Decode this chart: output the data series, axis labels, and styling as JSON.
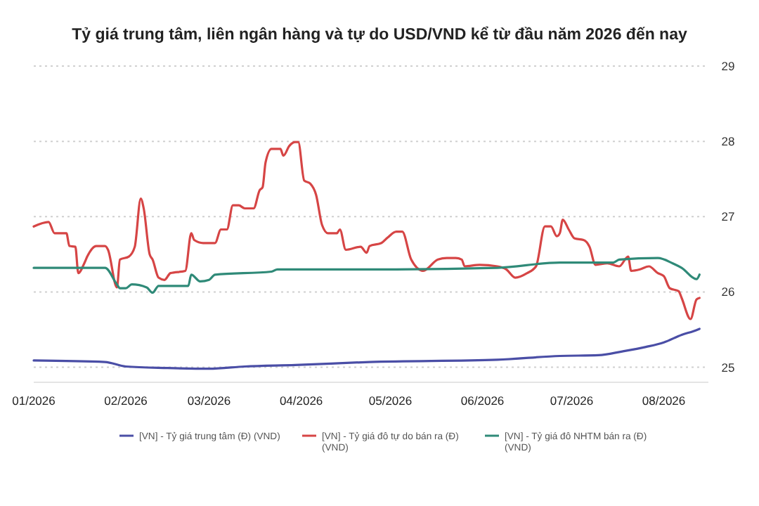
{
  "chart_data": {
    "type": "line",
    "title": "Tỷ giá trung tâm, liên ngân hàng và tự do USD/VND kể từ đầu năm 2026 đến nay",
    "xlim": [
      "2026-01-01",
      "2026-08-16"
    ],
    "xticks": [
      {
        "value": "2026-01-01",
        "label": "01/2026"
      },
      {
        "value": "2026-02-01",
        "label": "02/2026"
      },
      {
        "value": "2026-03-01",
        "label": "03/2026"
      },
      {
        "value": "2026-04-01",
        "label": "04/2026"
      },
      {
        "value": "2026-05-01",
        "label": "05/2026"
      },
      {
        "value": "2026-06-01",
        "label": "06/2026"
      },
      {
        "value": "2026-07-01",
        "label": "07/2026"
      },
      {
        "value": "2026-08-01",
        "label": "08/2026"
      }
    ],
    "ylim": [
      24.8,
      29
    ],
    "yticks": [
      25,
      26,
      27,
      28,
      29
    ],
    "grid": "y",
    "legend": "bottom",
    "marker": "none",
    "line_style": "solid",
    "series": [
      {
        "name": "[VN] - Tỷ giá trung tâm (Đ) (VND)",
        "color": "#4a4ea6",
        "x": [
          "2026-01-01",
          "2026-01-25",
          "2026-02-01",
          "2026-02-15",
          "2026-03-01",
          "2026-03-13",
          "2026-03-30",
          "2026-04-24",
          "2026-06-06",
          "2026-06-27",
          "2026-07-10",
          "2026-07-18",
          "2026-07-26",
          "2026-08-01",
          "2026-08-07",
          "2026-08-11",
          "2026-08-13"
        ],
        "values": [
          25.09,
          25.07,
          25.01,
          24.99,
          24.98,
          25.01,
          25.03,
          25.07,
          25.1,
          25.15,
          25.16,
          25.21,
          25.27,
          25.33,
          25.43,
          25.48,
          25.51
        ]
      },
      {
        "name": "[VN] - Tỷ giá đô tự do bán ra (Đ) (VND)",
        "color": "#d64545",
        "x": [
          "2026-01-01",
          "2026-01-06",
          "2026-01-08",
          "2026-01-12",
          "2026-01-13",
          "2026-01-15",
          "2026-01-16",
          "2026-01-18",
          "2026-01-19",
          "2026-01-22",
          "2026-01-25",
          "2026-01-26",
          "2026-01-29",
          "2026-01-30",
          "2026-02-02",
          "2026-02-04",
          "2026-02-06",
          "2026-02-07",
          "2026-02-09",
          "2026-02-10",
          "2026-02-12",
          "2026-02-14",
          "2026-02-16",
          "2026-02-21",
          "2026-02-23",
          "2026-02-24",
          "2026-02-27",
          "2026-03-03",
          "2026-03-05",
          "2026-03-07",
          "2026-03-09",
          "2026-03-11",
          "2026-03-13",
          "2026-03-16",
          "2026-03-18",
          "2026-03-19",
          "2026-03-20",
          "2026-03-22",
          "2026-03-25",
          "2026-03-26",
          "2026-03-28",
          "2026-03-30",
          "2026-03-31",
          "2026-04-02",
          "2026-04-04",
          "2026-04-06",
          "2026-04-08",
          "2026-04-10",
          "2026-04-13",
          "2026-04-14",
          "2026-04-16",
          "2026-04-21",
          "2026-04-23",
          "2026-04-24",
          "2026-04-28",
          "2026-04-30",
          "2026-05-03",
          "2026-05-05",
          "2026-05-08",
          "2026-05-12",
          "2026-05-17",
          "2026-05-20",
          "2026-05-23",
          "2026-05-25",
          "2026-05-26",
          "2026-05-31",
          "2026-06-06",
          "2026-06-09",
          "2026-06-12",
          "2026-06-16",
          "2026-06-19",
          "2026-06-22",
          "2026-06-24",
          "2026-06-26",
          "2026-06-27",
          "2026-06-28",
          "2026-06-30",
          "2026-07-02",
          "2026-07-05",
          "2026-07-07",
          "2026-07-09",
          "2026-07-13",
          "2026-07-17",
          "2026-07-20",
          "2026-07-21",
          "2026-07-24",
          "2026-07-27",
          "2026-07-30",
          "2026-08-01",
          "2026-08-03",
          "2026-08-06",
          "2026-08-07",
          "2026-08-10",
          "2026-08-12",
          "2026-08-13"
        ],
        "values": [
          26.87,
          26.93,
          26.78,
          26.78,
          26.61,
          26.6,
          26.25,
          26.38,
          26.47,
          26.61,
          26.61,
          26.56,
          26.06,
          26.43,
          26.47,
          26.6,
          27.24,
          27.11,
          26.5,
          26.43,
          26.19,
          26.16,
          26.25,
          26.28,
          26.78,
          26.69,
          26.65,
          26.65,
          26.83,
          26.83,
          27.15,
          27.15,
          27.11,
          27.11,
          27.35,
          27.39,
          27.72,
          27.9,
          27.9,
          27.81,
          27.94,
          27.99,
          27.99,
          27.48,
          27.44,
          27.29,
          26.89,
          26.78,
          26.78,
          26.83,
          26.56,
          26.6,
          26.52,
          26.61,
          26.65,
          26.72,
          26.8,
          26.8,
          26.43,
          26.28,
          26.43,
          26.45,
          26.45,
          26.43,
          26.34,
          26.36,
          26.34,
          26.3,
          26.19,
          26.25,
          26.34,
          26.87,
          26.87,
          26.74,
          26.78,
          26.96,
          26.83,
          26.71,
          26.69,
          26.6,
          26.36,
          26.38,
          26.34,
          26.47,
          26.28,
          26.3,
          26.34,
          26.25,
          26.21,
          26.05,
          26.01,
          25.92,
          25.64,
          25.9,
          25.92
        ]
      },
      {
        "name": "[VN] - Tỷ giá đô NHTM bán ra (Đ) (VND)",
        "color": "#2f8a78",
        "x": [
          "2026-01-01",
          "2026-01-25",
          "2026-01-29",
          "2026-01-30",
          "2026-02-01",
          "2026-02-03",
          "2026-02-08",
          "2026-02-10",
          "2026-02-12",
          "2026-02-22",
          "2026-02-23",
          "2026-02-26",
          "2026-03-01",
          "2026-03-03",
          "2026-03-22",
          "2026-03-24",
          "2026-05-03",
          "2026-06-06",
          "2026-06-27",
          "2026-07-15",
          "2026-07-17",
          "2026-07-30",
          "2026-08-04",
          "2026-08-07",
          "2026-08-12",
          "2026-08-13"
        ],
        "values": [
          26.32,
          26.32,
          26.1,
          26.05,
          26.05,
          26.1,
          26.06,
          25.99,
          26.08,
          26.08,
          26.23,
          26.14,
          26.16,
          26.23,
          26.27,
          26.3,
          26.3,
          26.32,
          26.39,
          26.39,
          26.43,
          26.45,
          26.38,
          26.32,
          26.17,
          26.23
        ]
      }
    ]
  }
}
